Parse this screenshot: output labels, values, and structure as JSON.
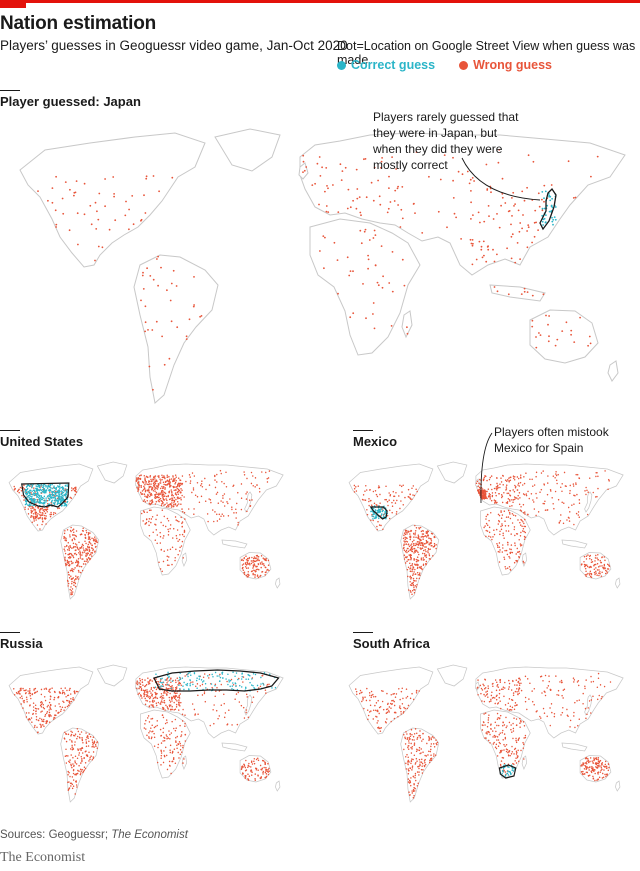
{
  "header": {
    "title": "Nation estimation",
    "subtitle": "Players’ guesses in Geoguessr video game, Jan-Oct 2020"
  },
  "legend": {
    "note": "Dot=Location on Google Street View when guess was made",
    "items": [
      {
        "label": "Correct guess",
        "color": "#2bb5c8"
      },
      {
        "label": "Wrong guess",
        "color": "#e8553a"
      }
    ]
  },
  "panels": [
    {
      "id": "japan",
      "title": "Player guessed: Japan",
      "guessed_country": "Japan"
    },
    {
      "id": "us",
      "title": "United States",
      "guessed_country": "United States"
    },
    {
      "id": "mexico",
      "title": "Mexico",
      "guessed_country": "Mexico"
    },
    {
      "id": "russia",
      "title": "Russia",
      "guessed_country": "Russia"
    },
    {
      "id": "sa",
      "title": "South Africa",
      "guessed_country": "South Africa"
    }
  ],
  "annotations": {
    "japan": "Players rarely guessed that they were in Japan, but when they did they were mostly correct",
    "mexico": "Players often mistook Mexico for Spain"
  },
  "colors": {
    "correct": "#2bb5c8",
    "wrong": "#e8553a",
    "land_outline": "#c8c8c8",
    "highlight_border": "#1a1a1a",
    "brand_red": "#e3120b"
  },
  "footer": {
    "source_prefix": "Sources: Geoguessr; ",
    "source_italic": "The Economist",
    "brand": "The Economist"
  }
}
